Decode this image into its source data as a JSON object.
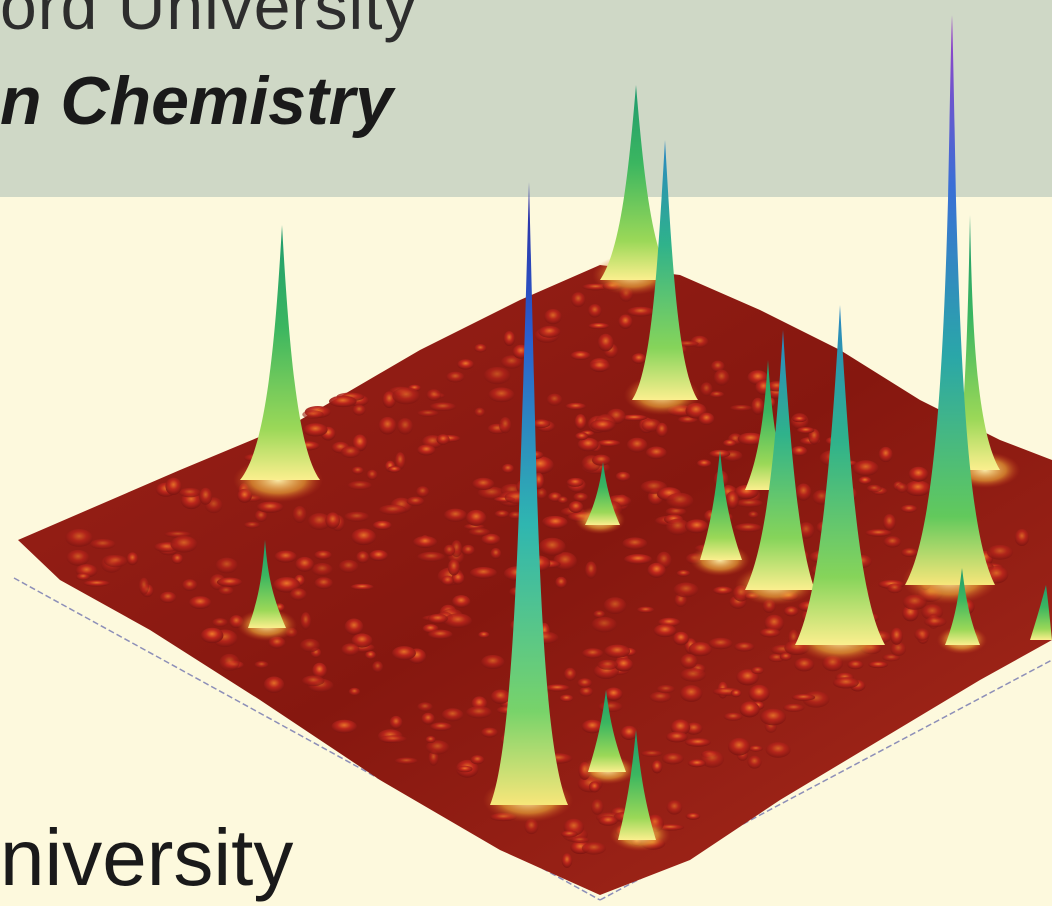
{
  "header": {
    "line1": "ord University",
    "line2": "n Chemistry"
  },
  "footer": {
    "text": "niversity"
  },
  "figure": {
    "description_icon": "surface-plot-icon",
    "colors": {
      "header_band": "#cfd8c6",
      "page_background": "#fdf9dd",
      "surface_base": "#8e1a16",
      "peak_low": "#f2c53a",
      "peak_mid": "#37b65a",
      "peak_high": "#2f6fc9",
      "peak_top": "#8a3fc4"
    }
  }
}
